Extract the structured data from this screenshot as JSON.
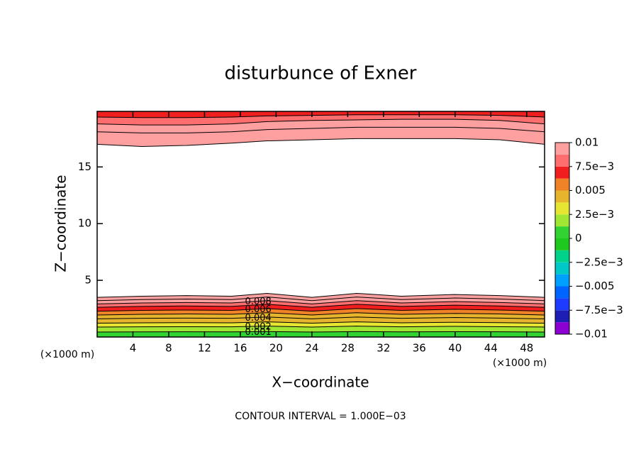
{
  "chart_data": {
    "type": "contour",
    "title": "disturbunce of Exner",
    "xlabel": "X−coordinate",
    "ylabel": "Z−coordinate",
    "yunit": "(×1000 m)",
    "xunit": "(×1000 m)",
    "footnote": "CONTOUR INTERVAL = 1.000E−03",
    "xlim": [
      0,
      50
    ],
    "ylim": [
      0,
      19.9
    ],
    "xticks": [
      4,
      8,
      12,
      16,
      20,
      24,
      28,
      32,
      36,
      40,
      44,
      48
    ],
    "yticks": [
      5,
      10,
      15
    ],
    "contour_x": [
      0,
      5,
      10,
      15,
      19,
      24,
      29,
      34,
      40,
      45,
      50
    ],
    "lower_contours": [
      {
        "level": 0.01,
        "labeled": false,
        "z": [
          3.5,
          3.6,
          3.65,
          3.6,
          3.85,
          3.5,
          3.85,
          3.6,
          3.75,
          3.65,
          3.5
        ]
      },
      {
        "level": 0.009,
        "labeled": false,
        "z": [
          3.21,
          3.3,
          3.35,
          3.3,
          3.53,
          3.21,
          3.53,
          3.3,
          3.44,
          3.35,
          3.21
        ]
      },
      {
        "level": 0.008,
        "labeled": true,
        "z": [
          2.92,
          3.0,
          3.04,
          3.0,
          3.21,
          2.92,
          3.21,
          3.0,
          3.12,
          3.04,
          2.92
        ]
      },
      {
        "level": 0.007,
        "labeled": false,
        "z": [
          2.62,
          2.7,
          2.74,
          2.7,
          2.89,
          2.62,
          2.89,
          2.7,
          2.81,
          2.74,
          2.62
        ]
      },
      {
        "level": 0.006,
        "labeled": true,
        "z": [
          2.28,
          2.35,
          2.38,
          2.35,
          2.51,
          2.28,
          2.51,
          2.35,
          2.45,
          2.38,
          2.28
        ]
      },
      {
        "level": 0.005,
        "labeled": false,
        "z": [
          1.94,
          2.0,
          2.03,
          2.0,
          2.14,
          1.94,
          2.14,
          2.0,
          2.08,
          2.03,
          1.94
        ]
      },
      {
        "level": 0.004,
        "labeled": true,
        "z": [
          1.6,
          1.65,
          1.67,
          1.65,
          1.76,
          1.6,
          1.76,
          1.65,
          1.72,
          1.67,
          1.6
        ]
      },
      {
        "level": 0.003,
        "labeled": false,
        "z": [
          1.22,
          1.25,
          1.27,
          1.25,
          1.34,
          1.22,
          1.34,
          1.25,
          1.3,
          1.27,
          1.22
        ]
      },
      {
        "level": 0.002,
        "labeled": true,
        "z": [
          0.88,
          0.9,
          0.91,
          0.9,
          0.96,
          0.88,
          0.96,
          0.9,
          0.94,
          0.91,
          0.88
        ]
      },
      {
        "level": 0.001,
        "labeled": true,
        "z": [
          0.44,
          0.45,
          0.46,
          0.45,
          0.48,
          0.44,
          0.48,
          0.45,
          0.47,
          0.46,
          0.44
        ]
      }
    ],
    "upper_contours": [
      {
        "level": 0.01,
        "labeled": false,
        "z": [
          17.0,
          16.8,
          16.9,
          17.1,
          17.3,
          17.4,
          17.5,
          17.5,
          17.5,
          17.4,
          17.0
        ]
      },
      {
        "level": 0.009,
        "labeled": false,
        "z": [
          18.1,
          18.0,
          18.0,
          18.1,
          18.3,
          18.4,
          18.5,
          18.5,
          18.5,
          18.4,
          18.1
        ]
      },
      {
        "level": 0.008,
        "labeled": false,
        "z": [
          18.8,
          18.7,
          18.7,
          18.8,
          19.0,
          19.1,
          19.15,
          19.2,
          19.2,
          19.1,
          18.8
        ]
      },
      {
        "level": 0.007,
        "labeled": false,
        "z": [
          19.4,
          19.35,
          19.35,
          19.4,
          19.5,
          19.55,
          19.6,
          19.6,
          19.6,
          19.55,
          19.4
        ]
      }
    ],
    "colorbar": {
      "lim": [
        -0.01,
        0.01
      ],
      "colors": [
        "#8c00d2",
        "#1e1eb4",
        "#1e3cff",
        "#0064ff",
        "#00a0ff",
        "#00c8c8",
        "#00d28c",
        "#1ec81e",
        "#32d232",
        "#a0e632",
        "#e6e632",
        "#e6b42d",
        "#f08228",
        "#f01e1e",
        "#ff6e6e",
        "#ffa0a0"
      ],
      "ticks": [
        {
          "value": -0.01,
          "label": "−0.01"
        },
        {
          "value": -0.0075,
          "label": "−7.5e−3"
        },
        {
          "value": -0.005,
          "label": "−0.005"
        },
        {
          "value": -0.0025,
          "label": "−2.5e−3"
        },
        0,
        {
          "value": 0.0025,
          "label": "2.5e−3"
        },
        0.005,
        {
          "value": 0.0075,
          "label": "7.5e−3"
        },
        0.01
      ]
    }
  }
}
